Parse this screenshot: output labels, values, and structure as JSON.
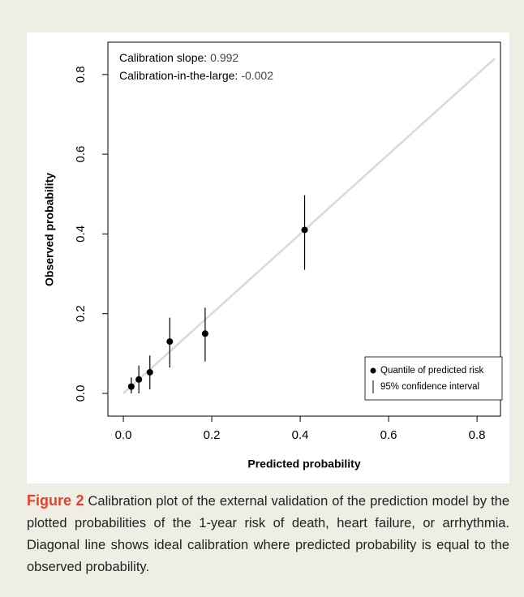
{
  "chart_data": {
    "type": "scatter",
    "xlabel": "Predicted probability",
    "ylabel": "Observed probability",
    "annotations": [
      {
        "label": "Calibration slope:",
        "value": "0.992"
      },
      {
        "label": "Calibration-in-the-large:",
        "value": "-0.002"
      }
    ],
    "series": [
      {
        "name": "Quantile of predicted risk",
        "color": "#000000",
        "x": [
          0.018,
          0.035,
          0.06,
          0.105,
          0.185,
          0.41
        ],
        "values": [
          0.017,
          0.035,
          0.053,
          0.13,
          0.15,
          0.41
        ],
        "ci_low": [
          0.0,
          0.0,
          0.01,
          0.065,
          0.08,
          0.31
        ],
        "ci_high": [
          0.04,
          0.07,
          0.095,
          0.19,
          0.215,
          0.497
        ]
      }
    ],
    "error_bar_name": "95% confidence interval",
    "reference_line": {
      "x": [
        0,
        0.84
      ],
      "y": [
        0,
        0.84
      ],
      "color": "#d9d9d9"
    },
    "xlim": [
      -0.035,
      0.853
    ],
    "ylim": [
      -0.057,
      0.881
    ],
    "xticks": [
      {
        "value": 0,
        "label": "0.0"
      },
      0.2,
      0.4,
      0.6,
      0.8
    ],
    "yticks": [
      {
        "value": 0,
        "label": "0.0"
      },
      0.2,
      0.4,
      0.6,
      0.8
    ],
    "legend": "bottom-right"
  },
  "caption": {
    "label": "Figure 2",
    "text": "Calibration plot of the external validation of the prediction model by the plotted probabilities of the 1-year risk of death, heart failure, or arrhythmia. Diagonal line shows ideal calibration where predicted probability is equal to the observed probability."
  }
}
